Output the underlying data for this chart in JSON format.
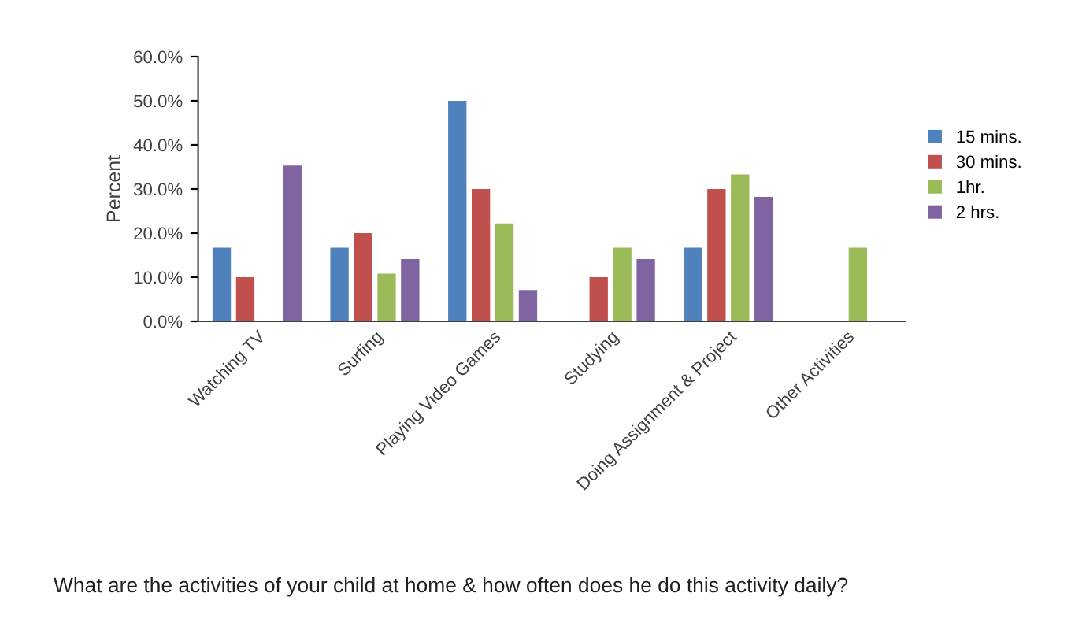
{
  "chart_data": {
    "type": "bar",
    "xlabel": "What are the activities of your child at home & how often does he do this activity daily?",
    "ylabel": "Percent",
    "categories": [
      "Watching TV",
      "Surfing",
      "Playing Video Games",
      "Studying",
      "Doing Assignment & Project",
      "Other Activities"
    ],
    "series": [
      {
        "name": "15 mins.",
        "color": "#4f81bd",
        "values": [
          16.7,
          16.7,
          50,
          null,
          16.7,
          null
        ]
      },
      {
        "name": "30 mins.",
        "color": "#c0504d",
        "values": [
          10,
          20,
          30,
          10,
          30,
          null
        ]
      },
      {
        "name": "1hr.",
        "color": "#9bbb59",
        "values": [
          null,
          10.8,
          22.2,
          16.7,
          33.3,
          16.7
        ]
      },
      {
        "name": "2 hrs.",
        "color": "#8064a2",
        "values": [
          35.3,
          14.1,
          7.1,
          14.1,
          28.2,
          null
        ]
      }
    ],
    "ylim": [
      0,
      60
    ],
    "yticks": [
      {
        "value": 0,
        "label": "0.0%"
      },
      {
        "value": 10,
        "label": "10.0%"
      },
      {
        "value": 20,
        "label": "20.0%"
      },
      {
        "value": 30,
        "label": "30.0%"
      },
      {
        "value": 40,
        "label": "40.0%"
      },
      {
        "value": 50,
        "label": "50.0%"
      },
      {
        "value": 60,
        "label": "60.0%"
      }
    ],
    "grid": false,
    "legend": "right"
  }
}
